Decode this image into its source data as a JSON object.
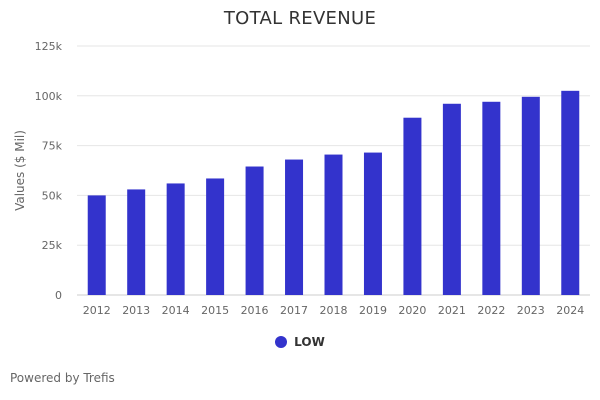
{
  "chart_data": {
    "type": "bar",
    "title": "TOTAL REVENUE",
    "ylabel": "Values ($ Mil)",
    "xlabel": "",
    "categories": [
      "2012",
      "2013",
      "2014",
      "2015",
      "2016",
      "2017",
      "2018",
      "2019",
      "2020",
      "2021",
      "2022",
      "2023",
      "2024"
    ],
    "series": [
      {
        "name": "LOW",
        "color": "#3333cc",
        "values": [
          50,
          53,
          56,
          58.5,
          64.5,
          68,
          70.5,
          71.5,
          89,
          96,
          97,
          99.5,
          102.5
        ]
      }
    ],
    "ylim": [
      0,
      125
    ],
    "yticks": [
      0,
      25,
      50,
      75,
      100,
      125
    ],
    "ytick_labels": [
      "0",
      "25k",
      "50k",
      "75k",
      "100k",
      "125k"
    ],
    "grid": true,
    "legend_position": "bottom-center"
  },
  "credits": "Powered by Trefis"
}
